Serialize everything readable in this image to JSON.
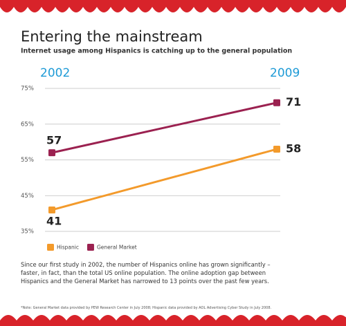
{
  "chart_data": {
    "type": "line",
    "title": "Entering the mainstream",
    "subtitle": "Internet usage among Hispanics is catching up to the general population",
    "categories": [
      "2002",
      "2009"
    ],
    "series": [
      {
        "name": "Hispanic",
        "color": "#f39a2b",
        "values": [
          41,
          58
        ]
      },
      {
        "name": "General Market",
        "color": "#9b2150",
        "values": [
          57,
          71
        ]
      }
    ],
    "ylim": [
      35,
      75
    ],
    "yticks": [
      {
        "value": 35,
        "label": "35%"
      },
      {
        "value": 45,
        "label": "45%"
      },
      {
        "value": 55,
        "label": "55%"
      },
      {
        "value": 65,
        "label": "65%"
      },
      {
        "value": 75,
        "label": "75%"
      }
    ],
    "grid": true,
    "legend": "bottom-left",
    "description": "Since our first study in 2002, the number of Hispanics online has grown significantly – faster, in fact, than the total US online population. The online adoption gap between Hispanics and the General Market has narrowed to 13 points over the past few years.",
    "footnote": "*Note: General Market data provided by PEW Research Center in July 2008; Hispanic data provided by AOL Advertising Cyber Study in July 2008."
  }
}
